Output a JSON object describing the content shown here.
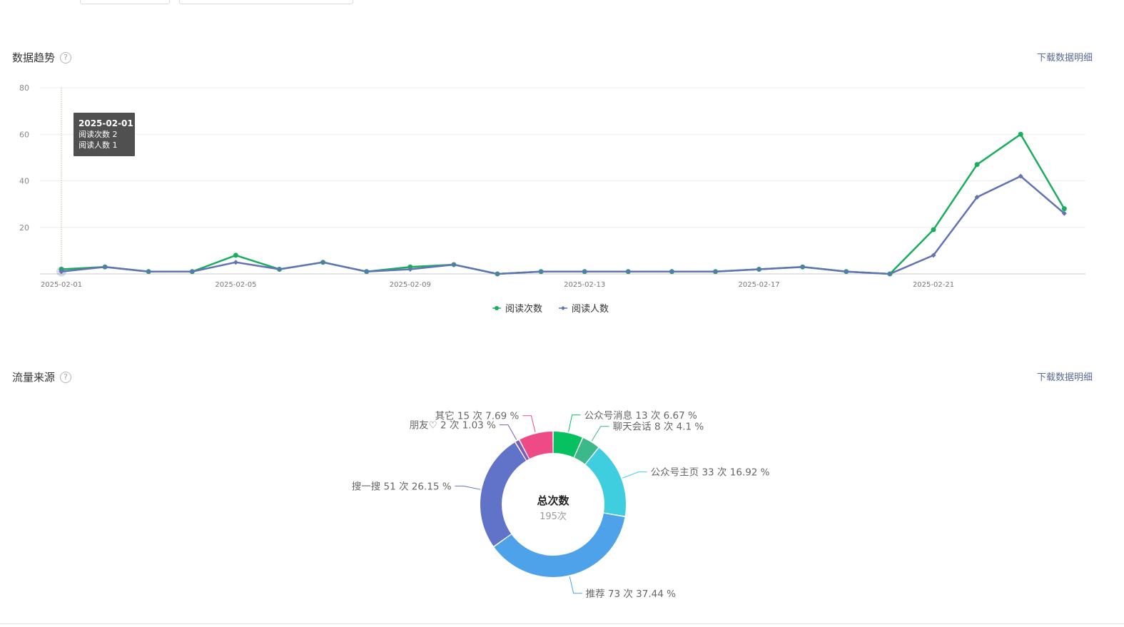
{
  "colors": {
    "reads": "#1aad5e",
    "readers": "#6173b4",
    "link": "#576b95"
  },
  "trend": {
    "title": "数据趋势",
    "help_icon": "?",
    "download_label": "下载数据明细",
    "legend": [
      {
        "label": "阅读次数",
        "color": "#1aad5e"
      },
      {
        "label": "阅读人数",
        "color": "#6173b4"
      }
    ],
    "tooltip": {
      "date": "2025-02-01",
      "line1": "阅读次数 2",
      "line2": "阅读人数 1"
    }
  },
  "source": {
    "title": "流量来源",
    "help_icon": "?",
    "download_label": "下载数据明细",
    "center_title": "总次数",
    "center_value": "195次"
  },
  "chart_data": [
    {
      "type": "line",
      "x": [
        "2025-02-01",
        "2025-02-02",
        "2025-02-03",
        "2025-02-04",
        "2025-02-05",
        "2025-02-06",
        "2025-02-07",
        "2025-02-08",
        "2025-02-09",
        "2025-02-10",
        "2025-02-11",
        "2025-02-12",
        "2025-02-13",
        "2025-02-14",
        "2025-02-15",
        "2025-02-16",
        "2025-02-17",
        "2025-02-18",
        "2025-02-19",
        "2025-02-20",
        "2025-02-21",
        "2025-02-22",
        "2025-02-23",
        "2025-02-24"
      ],
      "x_tick_labels": [
        "2025-02-01",
        "2025-02-05",
        "2025-02-09",
        "2025-02-13",
        "2025-02-17",
        "2025-02-21"
      ],
      "y_ticks": [
        20,
        40,
        60,
        80
      ],
      "ylim": [
        0,
        80
      ],
      "grid": true,
      "legend_position": "bottom-center",
      "series": [
        {
          "name": "阅读次数",
          "color": "#1aad5e",
          "marker": "circle",
          "values": [
            2,
            3,
            1,
            1,
            8,
            2,
            5,
            1,
            3,
            4,
            0,
            1,
            1,
            1,
            1,
            1,
            2,
            3,
            1,
            0,
            19,
            47,
            60,
            28
          ]
        },
        {
          "name": "阅读人数",
          "color": "#6173b4",
          "marker": "diamond",
          "values": [
            1,
            3,
            1,
            1,
            5,
            2,
            5,
            1,
            2,
            4,
            0,
            1,
            1,
            1,
            1,
            1,
            2,
            3,
            1,
            0,
            8,
            33,
            42,
            26
          ]
        }
      ]
    },
    {
      "type": "pie",
      "donut": true,
      "slices": [
        {
          "label": "公众号消息 13 次 6.67 %",
          "value": 13,
          "color": "#07c160"
        },
        {
          "label": "聊天会话 8 次 4.1 %",
          "value": 8,
          "color": "#3cb88a"
        },
        {
          "label": "公众号主页 33 次 16.92 %",
          "value": 33,
          "color": "#3fcde0"
        },
        {
          "label": "推荐 73 次 37.44 %",
          "value": 73,
          "color": "#4da2ea"
        },
        {
          "label": "搜一搜 51 次 26.15 %",
          "value": 51,
          "color": "#6173c8"
        },
        {
          "label": "朋友♡ 2 次 1.03 %",
          "value": 2,
          "color": "#7e5bb5"
        },
        {
          "label": "其它 15 次 7.69 %",
          "value": 15,
          "color": "#ee4b86"
        }
      ]
    }
  ]
}
